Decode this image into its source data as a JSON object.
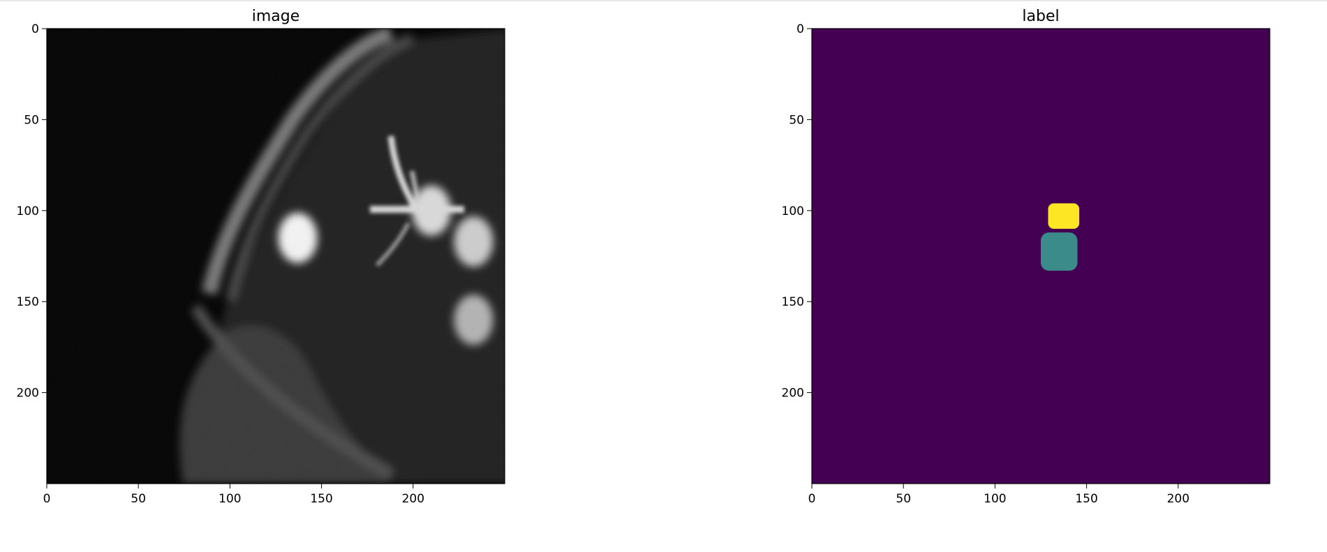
{
  "chart_data": [
    {
      "type": "heatmap",
      "title": "image",
      "colormap": "gray",
      "xlim": [
        0,
        250
      ],
      "ylim": [
        250,
        0
      ],
      "xticks": [
        0,
        50,
        100,
        150,
        200
      ],
      "yticks": [
        0,
        50,
        100,
        150,
        200
      ],
      "grid": false,
      "features": [
        {
          "name": "background",
          "value": 0.03
        },
        {
          "name": "bright-blob",
          "cx": 137,
          "cy": 115,
          "value": 0.95
        },
        {
          "name": "bright-blob",
          "cx": 210,
          "cy": 100,
          "value": 0.85
        },
        {
          "name": "bright-blob",
          "cx": 233,
          "cy": 117,
          "value": 0.8
        },
        {
          "name": "bright-blob",
          "cx": 233,
          "cy": 160,
          "value": 0.7
        }
      ]
    },
    {
      "type": "heatmap",
      "title": "label",
      "colormap": "viridis",
      "xlim": [
        0,
        250
      ],
      "ylim": [
        250,
        0
      ],
      "xticks": [
        0,
        50,
        100,
        150,
        200
      ],
      "yticks": [
        0,
        50,
        100,
        150,
        200
      ],
      "grid": false,
      "classes": [
        {
          "value": 0,
          "color": "#440154"
        },
        {
          "value": 1,
          "color": "#3b8b8a",
          "region": {
            "x_range": [
              125,
              145
            ],
            "y_range": [
              112,
              133
            ]
          }
        },
        {
          "value": 2,
          "color": "#fde725",
          "region": {
            "x_range": [
              129,
              146
            ],
            "y_range": [
              96,
              110
            ]
          }
        }
      ]
    }
  ]
}
